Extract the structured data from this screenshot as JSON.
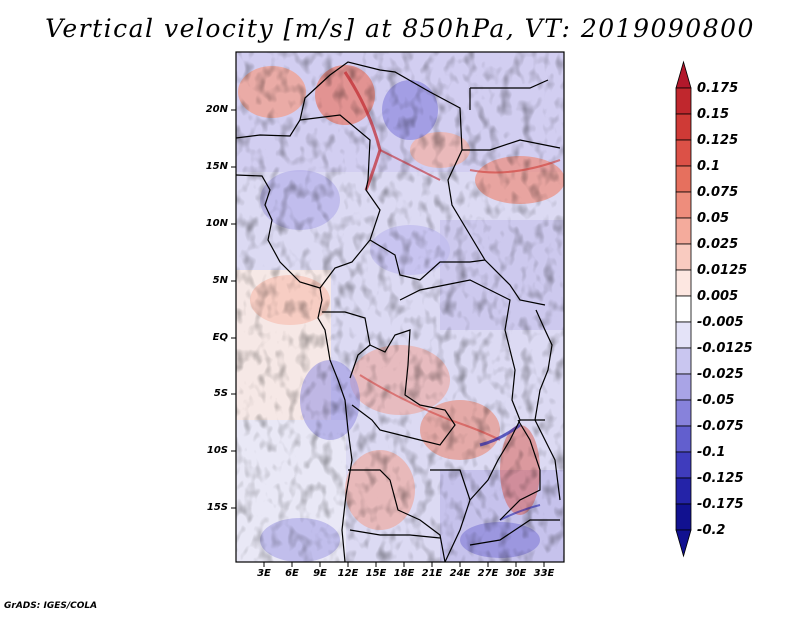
{
  "title": "Vertical velocity [m/s] at 850hPa, VT: 2019090800",
  "map": {
    "lat_labels": [
      "20N",
      "15N",
      "10N",
      "5N",
      "EQ",
      "5S",
      "10S",
      "15S"
    ],
    "lon_labels": [
      "3E",
      "6E",
      "9E",
      "12E",
      "15E",
      "18E",
      "21E",
      "24E",
      "27E",
      "30E",
      "33E"
    ]
  },
  "colorbar": {
    "labels": [
      "0.175",
      "0.15",
      "0.125",
      "0.1",
      "0.075",
      "0.05",
      "0.025",
      "0.0125",
      "0.005",
      "-0.005",
      "-0.0125",
      "-0.025",
      "-0.05",
      "-0.075",
      "-0.1",
      "-0.125",
      "-0.175",
      "-0.2"
    ],
    "colors": [
      "#b2182b",
      "#c0272d",
      "#cf3a36",
      "#dc5147",
      "#e6705e",
      "#ee8d7c",
      "#f4ab9c",
      "#f9cbc0",
      "#fde7e1",
      "#ffffff",
      "#e4e3f8",
      "#c9c6f0",
      "#a9a4e6",
      "#8782db",
      "#625fce",
      "#3f3cbd",
      "#2423a8",
      "#111190"
    ]
  },
  "credit": "GrADS: IGES/COLA"
}
